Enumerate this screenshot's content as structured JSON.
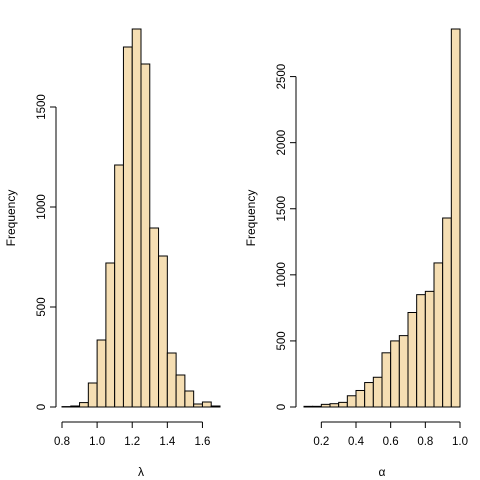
{
  "chart_data": [
    {
      "type": "bar",
      "histogram": true,
      "xlabel": "λ",
      "ylabel": "Frequency",
      "bar_fill": "#F5DEB3",
      "bar_stroke": "#000000",
      "bin_edges": [
        0.8,
        0.85,
        0.9,
        0.95,
        1.0,
        1.05,
        1.1,
        1.15,
        1.2,
        1.25,
        1.3,
        1.35,
        1.4,
        1.45,
        1.5,
        1.55,
        1.6,
        1.65,
        1.7
      ],
      "values": [
        2,
        5,
        22,
        120,
        335,
        720,
        1210,
        1800,
        1890,
        1715,
        895,
        755,
        270,
        160,
        80,
        15,
        25,
        5
      ],
      "x_ticks": [
        0.8,
        1.0,
        1.2,
        1.4,
        1.6
      ],
      "x_tick_labels": [
        "0.8",
        "1.0",
        "1.2",
        "1.4",
        "1.6"
      ],
      "y_ticks": [
        0,
        500,
        1000,
        1500
      ],
      "y_tick_labels": [
        "0",
        "500",
        "1000",
        "1500"
      ],
      "xlim": [
        0.8,
        1.7
      ],
      "ylim": [
        0,
        1890
      ]
    },
    {
      "type": "bar",
      "histogram": true,
      "xlabel": "α",
      "ylabel": "Frequency",
      "bar_fill": "#F5DEB3",
      "bar_stroke": "#000000",
      "bin_edges": [
        0.1,
        0.15,
        0.2,
        0.25,
        0.3,
        0.35,
        0.4,
        0.45,
        0.5,
        0.55,
        0.6,
        0.65,
        0.7,
        0.75,
        0.8,
        0.85,
        0.9,
        0.95,
        1.0
      ],
      "values": [
        5,
        5,
        20,
        25,
        35,
        85,
        125,
        185,
        225,
        410,
        500,
        540,
        715,
        850,
        875,
        1090,
        1430,
        2860
      ],
      "x_ticks": [
        0.2,
        0.4,
        0.6,
        0.8,
        1.0
      ],
      "x_tick_labels": [
        "0.2",
        "0.4",
        "0.6",
        "0.8",
        "1.0"
      ],
      "y_ticks": [
        0,
        500,
        1000,
        1500,
        2000,
        2500
      ],
      "y_tick_labels": [
        "0",
        "500",
        "1000",
        "1500",
        "2000",
        "2500"
      ],
      "xlim": [
        0.1,
        1.0
      ],
      "ylim": [
        0,
        2860
      ]
    }
  ]
}
